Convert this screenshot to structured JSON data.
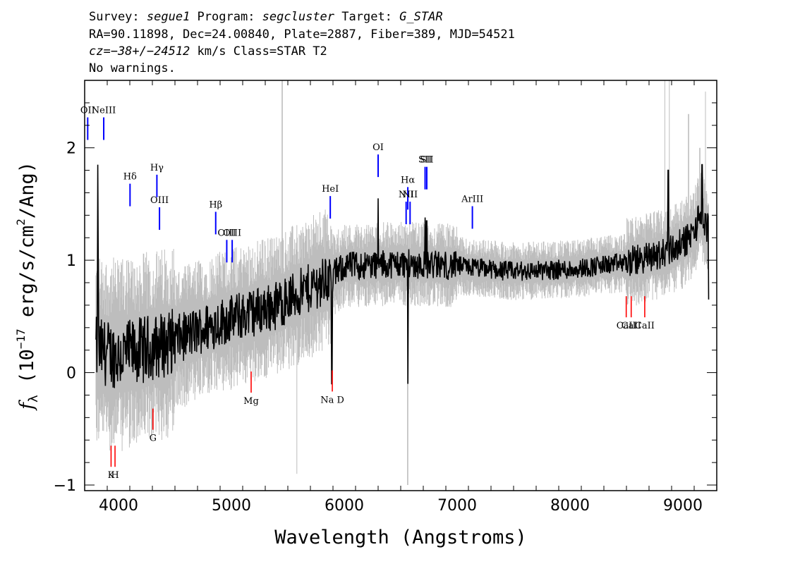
{
  "header": {
    "line1": [
      {
        "text": "Survey: ",
        "italic": false
      },
      {
        "text": "segue1",
        "italic": true
      },
      {
        "text": " Program: ",
        "italic": false
      },
      {
        "text": "segcluster",
        "italic": true
      },
      {
        "text": " Target: ",
        "italic": false
      },
      {
        "text": "G_STAR",
        "italic": true
      }
    ],
    "line2": "RA=90.11898, Dec=24.00840, Plate=2887, Fiber=389, MJD=54521",
    "line3": [
      {
        "text": "cz=−38+/−24512",
        "italic": true
      },
      {
        "text": " km/s Class=STAR T2",
        "italic": false
      }
    ],
    "line4": "No warnings."
  },
  "chart_data": {
    "type": "line",
    "xlabel": "Wavelength (Angstroms)",
    "ylabel_parts": {
      "f": "f",
      "sub": "λ",
      "open": " (10",
      "exp1": "−17",
      "mid": " erg/s/cm",
      "exp2": "2",
      "close": "/Ang)"
    },
    "xlim": [
      3700,
      9300
    ],
    "ylim": [
      -1.05,
      2.6
    ],
    "x_ticks": [
      4000,
      5000,
      6000,
      7000,
      8000,
      9000
    ],
    "y_ticks": [
      -1,
      0,
      1,
      2
    ],
    "colors": {
      "flux": "#000000",
      "error": "#bdbdbd",
      "emission": "#0000ff",
      "absorption": "#ff0000"
    },
    "continuum_anchors": [
      [
        3800,
        0.2
      ],
      [
        4000,
        0.15
      ],
      [
        4400,
        0.25
      ],
      [
        4900,
        0.45
      ],
      [
        5400,
        0.6
      ],
      [
        5880,
        0.85
      ],
      [
        6000,
        0.95
      ],
      [
        6500,
        0.97
      ],
      [
        7000,
        0.95
      ],
      [
        7500,
        0.9
      ],
      [
        8000,
        0.92
      ],
      [
        8500,
        0.98
      ],
      [
        8800,
        1.05
      ],
      [
        9000,
        1.15
      ],
      [
        9100,
        1.25
      ],
      [
        9150,
        1.4
      ],
      [
        9200,
        1.3
      ]
    ],
    "spectral_features": [
      [
        3815,
        1.85
      ],
      [
        3820,
        1.1
      ],
      [
        5890,
        -0.1
      ],
      [
        6563,
        -0.1
      ],
      [
        6300,
        1.55
      ],
      [
        6716,
        1.38
      ],
      [
        6730,
        1.35
      ],
      [
        8870,
        1.8
      ],
      [
        9170,
        1.85
      ],
      [
        9230,
        0.65
      ]
    ],
    "error_spikes": [
      [
        5450,
        2.6
      ],
      [
        5580,
        -0.9
      ],
      [
        6563,
        -1.0
      ],
      [
        8840,
        2.6
      ],
      [
        8880,
        2.6
      ],
      [
        9050,
        2.3
      ],
      [
        9150,
        2.0
      ],
      [
        9200,
        2.5
      ]
    ],
    "emission_lines": [
      {
        "label": "OII",
        "x": 3727,
        "y": 2.07
      },
      {
        "label": "NeIII",
        "x": 3869,
        "y": 2.07
      },
      {
        "label": "Hδ",
        "x": 4102,
        "y": 1.48
      },
      {
        "label": "Hγ",
        "x": 4340,
        "y": 1.56
      },
      {
        "label": "OIII",
        "x": 4363,
        "y": 1.27
      },
      {
        "label": "Hβ",
        "x": 4861,
        "y": 1.23
      },
      {
        "label": "OIII",
        "x": 4959,
        "y": 0.98
      },
      {
        "label": "OIII",
        "x": 5007,
        "y": 0.98
      },
      {
        "label": "HeI",
        "x": 5876,
        "y": 1.37
      },
      {
        "label": "OI",
        "x": 6300,
        "y": 1.74
      },
      {
        "label": "NII",
        "x": 6548,
        "y": 1.32
      },
      {
        "label": "Hα",
        "x": 6563,
        "y": 1.45
      },
      {
        "label": "NII",
        "x": 6583,
        "y": 1.32
      },
      {
        "label": "SII",
        "x": 6716,
        "y": 1.63
      },
      {
        "label": "SII",
        "x": 6731,
        "y": 1.63
      },
      {
        "label": "ArIII",
        "x": 7135,
        "y": 1.28
      }
    ],
    "absorption_lines": [
      {
        "label": "K",
        "x": 3934,
        "y": -0.65
      },
      {
        "label": "H",
        "x": 3969,
        "y": -0.65
      },
      {
        "label": "G",
        "x": 4305,
        "y": -0.32
      },
      {
        "label": "Mg",
        "x": 5175,
        "y": 0.01
      },
      {
        "label": "Na D",
        "x": 5894,
        "y": 0.02
      },
      {
        "label": "CaII",
        "x": 8498,
        "y": 0.68
      },
      {
        "label": "CaII",
        "x": 8542,
        "y": 0.68
      },
      {
        "label": "CaII",
        "x": 8662,
        "y": 0.68
      }
    ]
  }
}
